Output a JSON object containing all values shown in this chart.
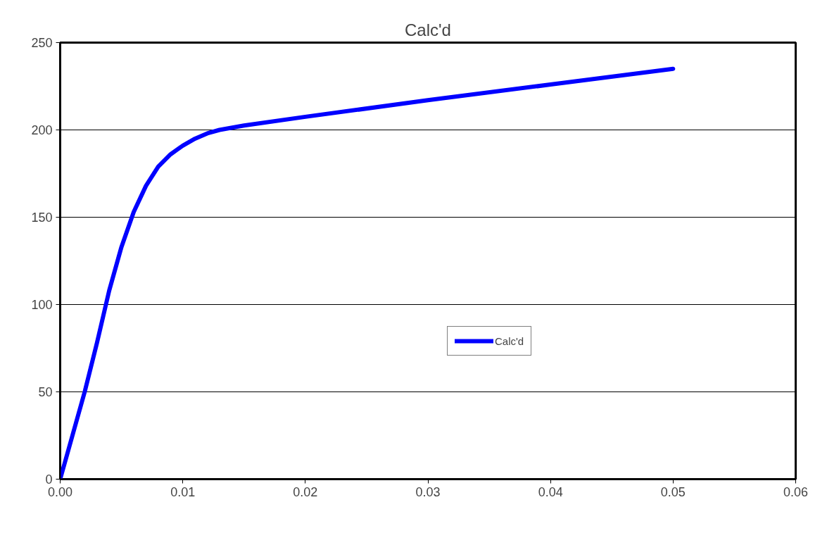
{
  "chart_data": {
    "type": "line",
    "title": "Calc'd",
    "x": [
      0,
      0.001,
      0.002,
      0.003,
      0.004,
      0.005,
      0.006,
      0.007,
      0.008,
      0.009,
      0.01,
      0.011,
      0.012,
      0.013,
      0.015,
      0.02,
      0.03,
      0.04,
      0.05
    ],
    "series": [
      {
        "name": "Calc'd",
        "color": "#0000ff",
        "values": [
          0,
          25,
          50,
          78,
          108,
          133,
          153,
          168,
          179,
          186,
          191,
          195,
          198,
          200,
          202.5,
          207.5,
          217,
          226,
          235
        ]
      }
    ],
    "xlim": [
      0,
      0.06
    ],
    "xticks": [
      {
        "value": 0,
        "label": "0.00"
      },
      {
        "value": 0.01,
        "label": "0.01"
      },
      {
        "value": 0.02,
        "label": "0.02"
      },
      {
        "value": 0.03,
        "label": "0.03"
      },
      {
        "value": 0.04,
        "label": "0.04"
      },
      {
        "value": 0.05,
        "label": "0.05"
      },
      {
        "value": 0.06,
        "label": "0.06"
      }
    ],
    "ylim": [
      0,
      250
    ],
    "yticks": [
      0,
      50,
      100,
      150,
      200,
      250
    ],
    "grid": "y",
    "legend": "bottom right",
    "marker": "none",
    "line_style": "solid"
  }
}
